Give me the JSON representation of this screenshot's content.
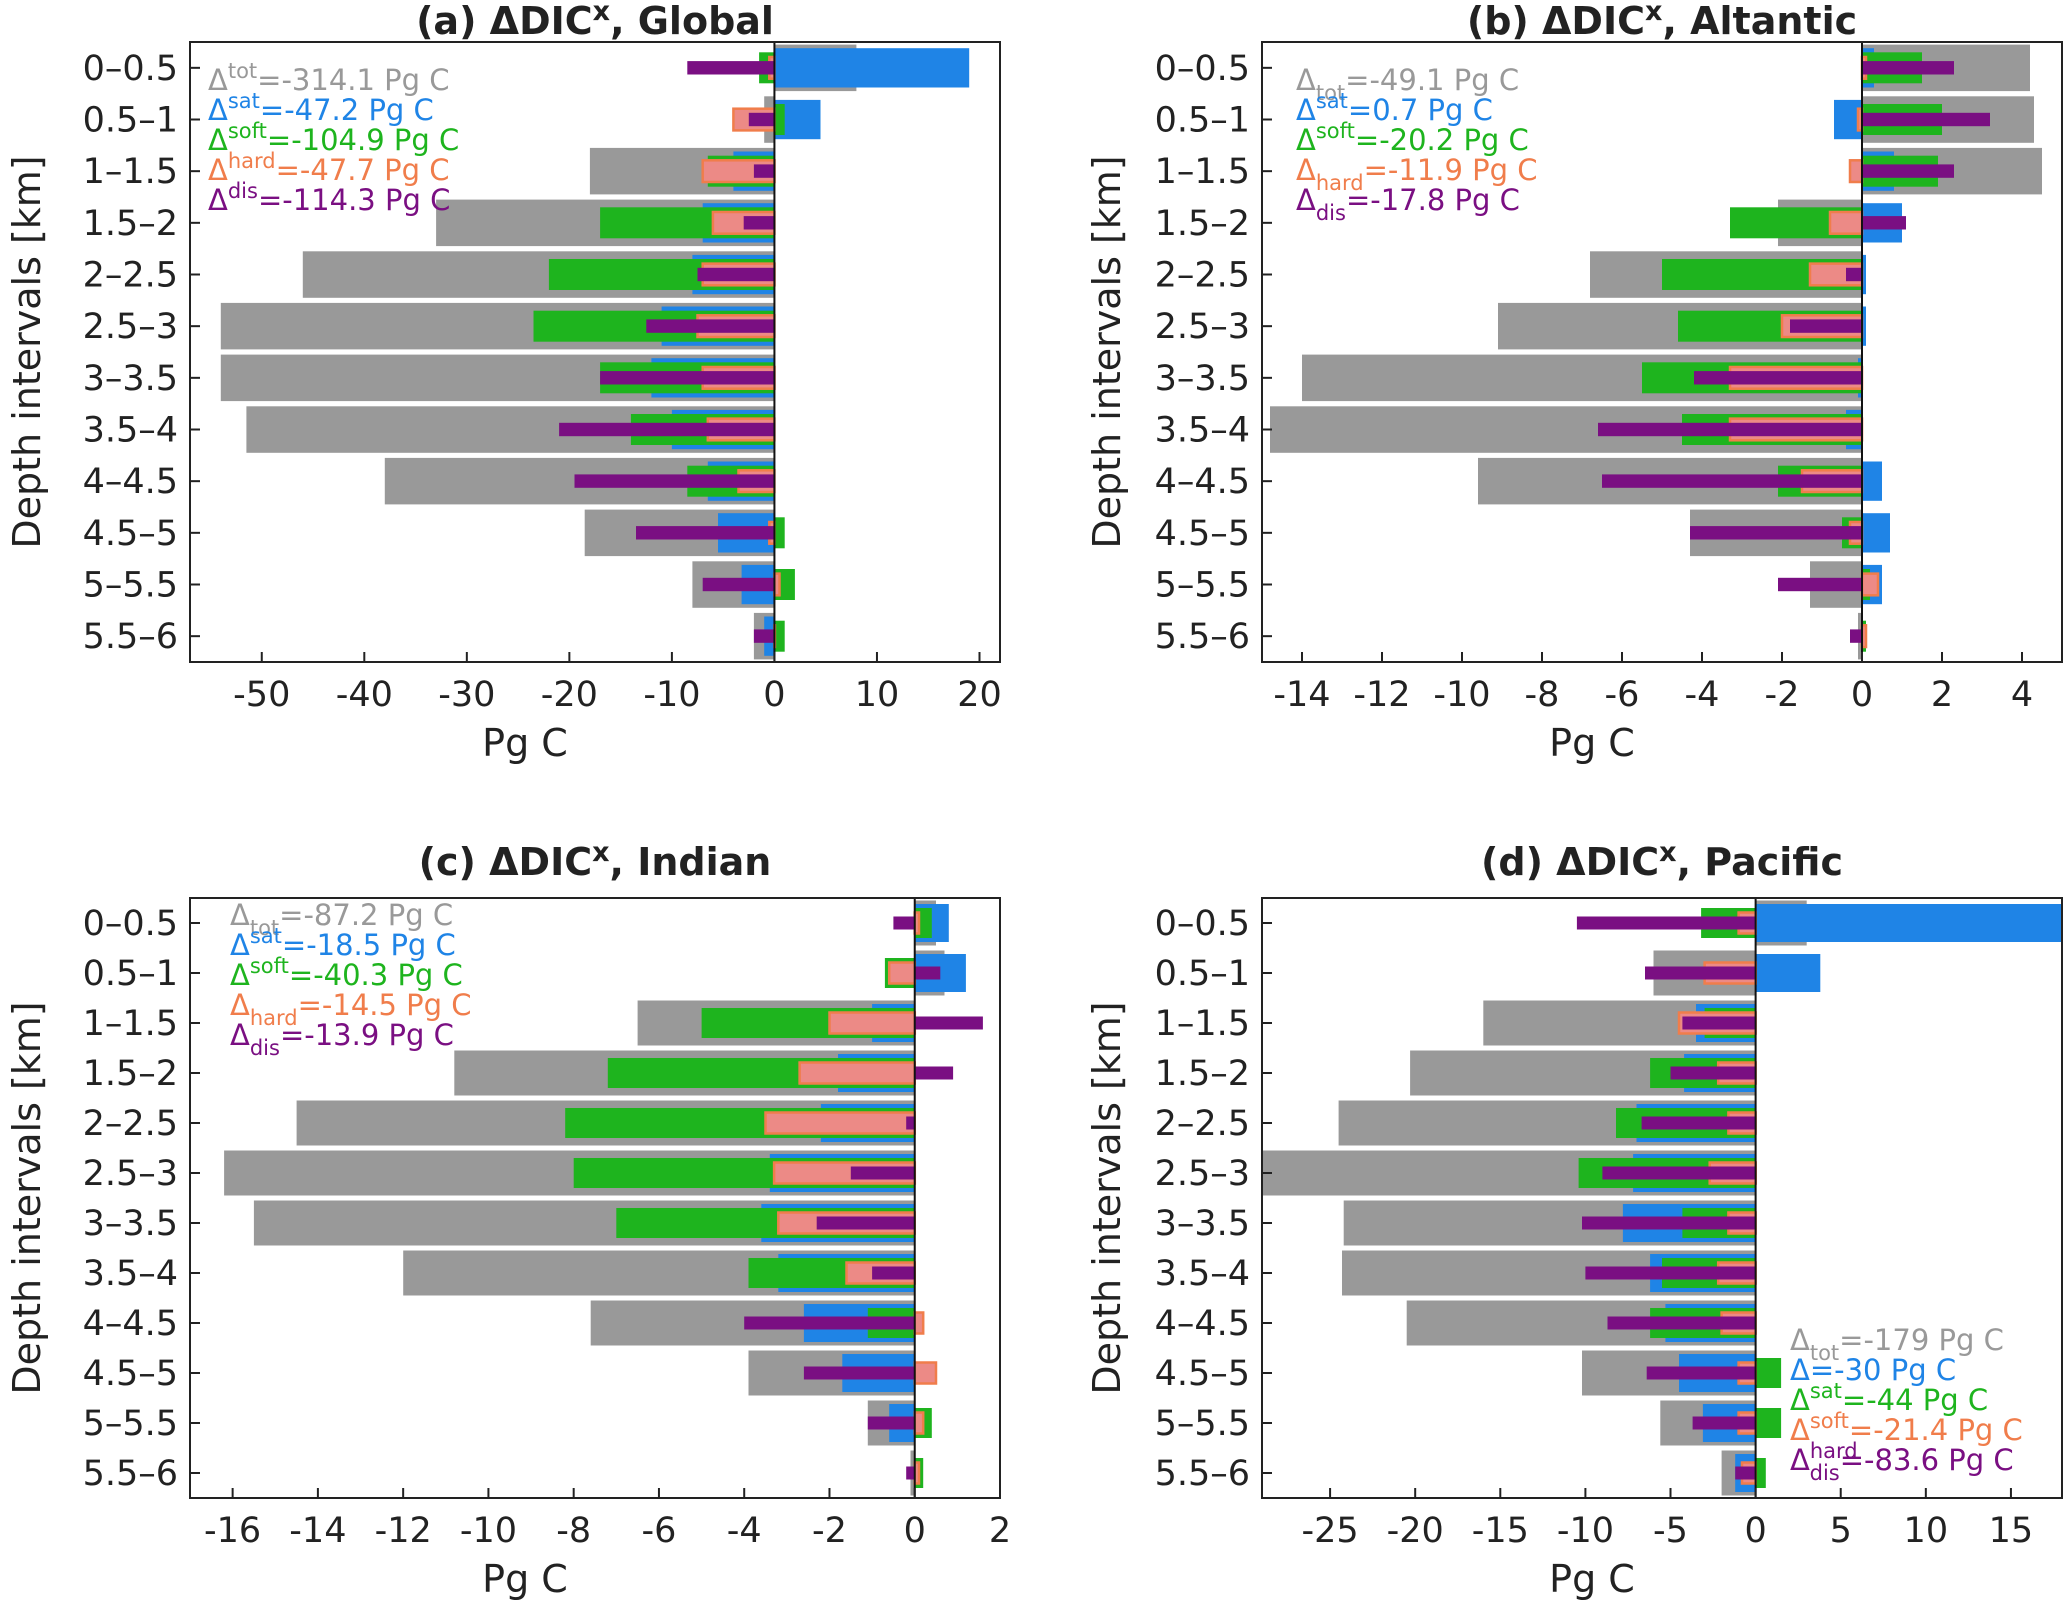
{
  "colors": {
    "tot": "#999999",
    "sat": "#1f84e6",
    "soft": "#1eb41e",
    "hard": "#f07d4b",
    "hard_fill": "#ec8a86",
    "dis": "#7a0f82"
  },
  "chart_data": [
    {
      "type": "bar",
      "orientation": "horizontal",
      "title": "(a) ΔDIC^x, Global",
      "title_main": "(a) ΔDIC",
      "title_sup": "x",
      "title_end": ", Global",
      "xlabel": "Pg C",
      "ylabel": "Depth intervals [km]",
      "xlim": [
        -57,
        22
      ],
      "xticks": [
        -50,
        -40,
        -30,
        -20,
        -10,
        0,
        10,
        20
      ],
      "xtick_labels": [
        "-50",
        "-40",
        "-30",
        "-20",
        "-10",
        "0",
        "10",
        "20"
      ],
      "categories": [
        "0–0.5",
        "0.5–1",
        "1–1.5",
        "1.5–2",
        "2–2.5",
        "2.5–3",
        "3–3.5",
        "3.5–4",
        "4–4.5",
        "4.5–5",
        "5–5.5",
        "5.5–6"
      ],
      "series": [
        {
          "key": "tot",
          "values": [
            8,
            -1,
            -18,
            -33,
            -46,
            -54,
            -54,
            -51.5,
            -38,
            -18.5,
            -8,
            -2
          ]
        },
        {
          "key": "sat",
          "values": [
            19,
            4.5,
            -4,
            -7,
            -8,
            -11,
            -12,
            -10,
            -6.5,
            -5.5,
            -3.2,
            -1
          ]
        },
        {
          "key": "soft",
          "values": [
            -1.5,
            1,
            -6.5,
            -17,
            -22,
            -23.5,
            -17,
            -14,
            -8.5,
            1,
            2,
            1
          ]
        },
        {
          "key": "hard",
          "values": [
            -0.5,
            -4,
            -7,
            -6,
            -7,
            -7.5,
            -7,
            -6.5,
            -3.5,
            -0.5,
            0.5,
            0
          ]
        },
        {
          "key": "dis",
          "values": [
            -8.5,
            -2.5,
            -2,
            -3,
            -7.5,
            -12.5,
            -17,
            -21,
            -19.5,
            -13.5,
            -7,
            -2
          ]
        }
      ],
      "annotations": [
        {
          "key": "tot",
          "base": "Δ",
          "sup": "tot",
          "sub": "",
          "value": "=-314.1 Pg C"
        },
        {
          "key": "sat",
          "base": "Δ",
          "sup": "sat",
          "sub": "",
          "value": "=-47.2 Pg C"
        },
        {
          "key": "soft",
          "base": "Δ",
          "sup": "soft",
          "sub": "",
          "value": "=-104.9 Pg C"
        },
        {
          "key": "hard",
          "base": "Δ",
          "sup": "hard",
          "sub": "",
          "value": "=-47.7 Pg C"
        },
        {
          "key": "dis",
          "base": "Δ",
          "sup": "dis",
          "sub": "",
          "value": "=-114.3 Pg C"
        }
      ],
      "annotation_position": "top-left"
    },
    {
      "type": "bar",
      "orientation": "horizontal",
      "title": "(b) ΔDIC^x, Altantic",
      "title_main": "(b) ΔDIC",
      "title_sup": "x",
      "title_end": ", Altantic",
      "xlabel": "Pg C",
      "ylabel": "Depth intervals [km]",
      "xlim": [
        -15,
        5
      ],
      "xticks": [
        -14,
        -12,
        -10,
        -8,
        -6,
        -4,
        -2,
        0,
        2,
        4
      ],
      "xtick_labels": [
        "-14",
        "-12",
        "-10",
        "-8",
        "-6",
        "-4",
        "-2",
        "0",
        "2",
        "4"
      ],
      "categories": [
        "0–0.5",
        "0.5–1",
        "1–1.5",
        "1.5–2",
        "2–2.5",
        "2.5–3",
        "3–3.5",
        "3.5–4",
        "4–4.5",
        "4.5–5",
        "5–5.5",
        "5.5–6"
      ],
      "series": [
        {
          "key": "tot",
          "values": [
            4.2,
            4.3,
            4.5,
            -2.1,
            -6.8,
            -9.1,
            -14,
            -14.8,
            -9.6,
            -4.3,
            -1.3,
            -0.1
          ]
        },
        {
          "key": "sat",
          "values": [
            0.3,
            -0.7,
            0.8,
            1,
            0.1,
            0.1,
            -0.1,
            -0.4,
            0.5,
            0.7,
            0.5,
            0
          ]
        },
        {
          "key": "soft",
          "values": [
            1.5,
            2,
            1.9,
            -3.3,
            -5,
            -4.6,
            -5.5,
            -4.5,
            -2.1,
            -0.5,
            0.2,
            0.1
          ]
        },
        {
          "key": "hard",
          "values": [
            0.1,
            -0.1,
            -0.3,
            -0.8,
            -1.3,
            -2,
            -3.3,
            -3.3,
            -1.5,
            -0.3,
            0.4,
            0.1
          ]
        },
        {
          "key": "dis",
          "values": [
            2.3,
            3.2,
            2.3,
            1.1,
            -0.4,
            -1.8,
            -4.2,
            -6.6,
            -6.5,
            -4.3,
            -2.1,
            -0.3
          ]
        }
      ],
      "annotations": [
        {
          "key": "tot",
          "base": "Δ",
          "sup": "",
          "sub": "tot",
          "value": "=-49.1 Pg C"
        },
        {
          "key": "sat",
          "base": "Δ",
          "sup": "sat",
          "sub": "",
          "value": "=0.7 Pg C"
        },
        {
          "key": "soft",
          "base": "Δ",
          "sup": "soft",
          "sub": "",
          "value": "=-20.2 Pg C"
        },
        {
          "key": "hard",
          "base": "Δ",
          "sup": "",
          "sub": "hard",
          "value": "=-11.9 Pg C"
        },
        {
          "key": "dis",
          "base": "Δ",
          "sup": "",
          "sub": "dis",
          "value": "=-17.8 Pg C"
        }
      ],
      "annotation_position": "top-left"
    },
    {
      "type": "bar",
      "orientation": "horizontal",
      "title": "(c) ΔDIC^x, Indian",
      "title_main": "(c) ΔDIC",
      "title_sup": "x",
      "title_end": ", Indian",
      "xlabel": "Pg C",
      "ylabel": "Depth intervals [km]",
      "xlim": [
        -17,
        2
      ],
      "xticks": [
        -16,
        -14,
        -12,
        -10,
        -8,
        -6,
        -4,
        -2,
        0,
        2
      ],
      "xtick_labels": [
        "-16",
        "-14",
        "-12",
        "-10",
        "-8",
        "-6",
        "-4",
        "-2",
        "0",
        "2"
      ],
      "categories": [
        "0–0.5",
        "0.5–1",
        "1–1.5",
        "1.5–2",
        "2–2.5",
        "2.5–3",
        "3–3.5",
        "3.5–4",
        "4–4.5",
        "4.5–5",
        "5–5.5",
        "5.5–6"
      ],
      "series": [
        {
          "key": "tot",
          "values": [
            0.5,
            0.7,
            -6.5,
            -10.8,
            -14.5,
            -16.2,
            -15.5,
            -12,
            -7.6,
            -3.9,
            -1.1,
            -0.1
          ]
        },
        {
          "key": "sat",
          "values": [
            0.8,
            1.2,
            -1,
            -1.8,
            -2.2,
            -3.4,
            -3.6,
            -3.2,
            -2.6,
            -1.7,
            -0.6,
            0
          ]
        },
        {
          "key": "soft",
          "values": [
            0.4,
            -0.7,
            -5,
            -7.2,
            -8.2,
            -8,
            -7,
            -3.9,
            -1.1,
            0,
            0.4,
            0.2
          ]
        },
        {
          "key": "hard",
          "values": [
            0.1,
            -0.6,
            -2,
            -2.7,
            -3.5,
            -3.3,
            -3.2,
            -1.6,
            0.2,
            0.5,
            0.2,
            0.1
          ]
        },
        {
          "key": "dis",
          "values": [
            -0.5,
            0.6,
            1.6,
            0.9,
            -0.2,
            -1.5,
            -2.3,
            -1,
            -4,
            -2.6,
            -1.1,
            -0.2
          ]
        }
      ],
      "annotations": [
        {
          "key": "tot",
          "base": "Δ",
          "sup": "",
          "sub": "tot",
          "value": "=-87.2 Pg C"
        },
        {
          "key": "sat",
          "base": "Δ",
          "sup": "sat",
          "sub": "",
          "value": "=-18.5 Pg C"
        },
        {
          "key": "soft",
          "base": "Δ",
          "sup": "soft",
          "sub": "",
          "value": "=-40.3 Pg C"
        },
        {
          "key": "hard",
          "base": "Δ",
          "sup": "",
          "sub": "hard",
          "value": "=-14.5 Pg C"
        },
        {
          "key": "dis",
          "base": "Δ",
          "sup": "",
          "sub": "dis",
          "value": "=-13.9 Pg C"
        }
      ],
      "annotation_position": "top-left"
    },
    {
      "type": "bar",
      "orientation": "horizontal",
      "title": "(d) ΔDIC^x, Pacific",
      "title_main": "(d) ΔDIC",
      "title_sup": "x",
      "title_end": ", Pacific",
      "xlabel": "Pg C",
      "ylabel": "Depth intervals [km]",
      "xlim": [
        -29,
        18
      ],
      "xticks": [
        -25,
        -20,
        -15,
        -10,
        -5,
        0,
        5,
        10,
        15
      ],
      "xtick_labels": [
        "-25",
        "-20",
        "-15",
        "-10",
        "-5",
        "0",
        "5",
        "10",
        "15"
      ],
      "categories": [
        "0–0.5",
        "0.5–1",
        "1–1.5",
        "1.5–2",
        "2–2.5",
        "2.5–3",
        "3–3.5",
        "3.5–4",
        "4–4.5",
        "4.5–5",
        "5–5.5",
        "5.5–6"
      ],
      "series": [
        {
          "key": "tot",
          "values": [
            3,
            -6,
            -16,
            -20.3,
            -24.5,
            -29,
            -24.2,
            -24.3,
            -20.5,
            -10.2,
            -5.6,
            -2
          ]
        },
        {
          "key": "sat",
          "values": [
            18,
            3.8,
            -3.5,
            -4.2,
            -7,
            -7.2,
            -7.8,
            -6.2,
            -5.3,
            -4.5,
            -3.1,
            -1.2
          ]
        },
        {
          "key": "soft",
          "values": [
            -3.2,
            0,
            -3,
            -6.2,
            -8.2,
            -10.4,
            -4.3,
            -5.5,
            -6.2,
            1.5,
            1.5,
            0.6
          ]
        },
        {
          "key": "hard",
          "values": [
            -1,
            -3,
            -4.5,
            -2.2,
            -1.6,
            -2.7,
            -1.6,
            -2.2,
            -2,
            -1,
            -1,
            -0.8
          ]
        },
        {
          "key": "dis",
          "values": [
            -10.5,
            -6.5,
            -4.3,
            -5,
            -6.7,
            -9,
            -10.2,
            -10,
            -8.7,
            -6.4,
            -3.7,
            -1.2
          ]
        }
      ],
      "annotations": [
        {
          "key": "tot",
          "base": "Δ",
          "sup": "",
          "sub": "tot",
          "value": "=-179 Pg C"
        },
        {
          "key": "sat",
          "base": "Δ",
          "sup": "",
          "sub": "",
          "value": "=-30 Pg C"
        },
        {
          "key": "soft",
          "base": "Δ",
          "sup": "sat",
          "sub": "",
          "value": "=-44 Pg C"
        },
        {
          "key": "hard",
          "base": "Δ",
          "sup": "soft",
          "sub": "",
          "value": "=-21.4 Pg C"
        },
        {
          "key": "dis",
          "base": "Δ",
          "sup": "hard",
          "sub": "dis",
          "value": "=-83.6 Pg C"
        }
      ],
      "annotation_position": "bottom-right"
    }
  ]
}
